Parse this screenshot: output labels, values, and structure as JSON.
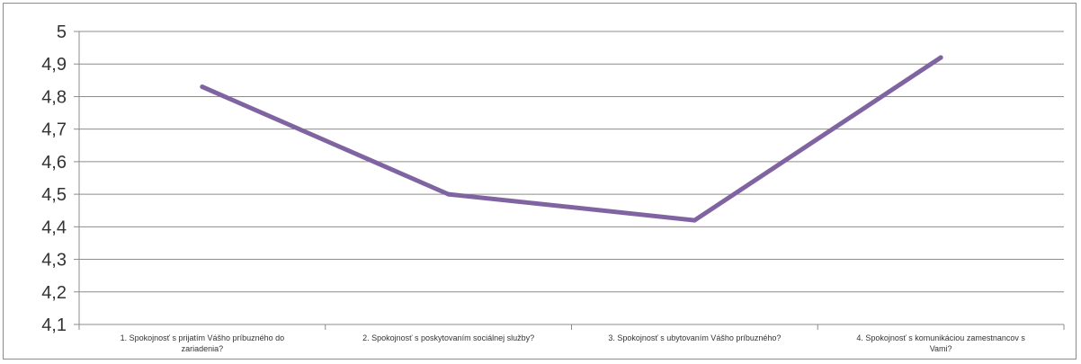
{
  "chart_data": {
    "type": "line",
    "title": "",
    "xlabel": "",
    "ylabel": "",
    "categories": [
      [
        "1. Spokojnosť s prijatím Vášho príbuzného do",
        "zariadenia?"
      ],
      [
        "2. Spokojnosť s poskytovaním sociálnej služby?"
      ],
      [
        "3. Spokojnosť s ubytovaním Vášho príbuzného?"
      ],
      [
        "4. Spokojnosť s komunikáciou zamestnancov s",
        "Vami?"
      ]
    ],
    "series": [
      {
        "values": [
          4.83,
          4.5,
          4.42,
          4.92
        ],
        "color": "#8064a2"
      }
    ],
    "ylim": [
      4.1,
      5
    ],
    "yticks": [
      "4,1",
      "4,2",
      "4,3",
      "4,4",
      "4,5",
      "4,6",
      "4,7",
      "4,8",
      "4,9",
      "5"
    ],
    "ytick_values": [
      4.1,
      4.2,
      4.3,
      4.4,
      4.5,
      4.6,
      4.7,
      4.8,
      4.9,
      5.0
    ],
    "grid": true,
    "legend": "none"
  }
}
